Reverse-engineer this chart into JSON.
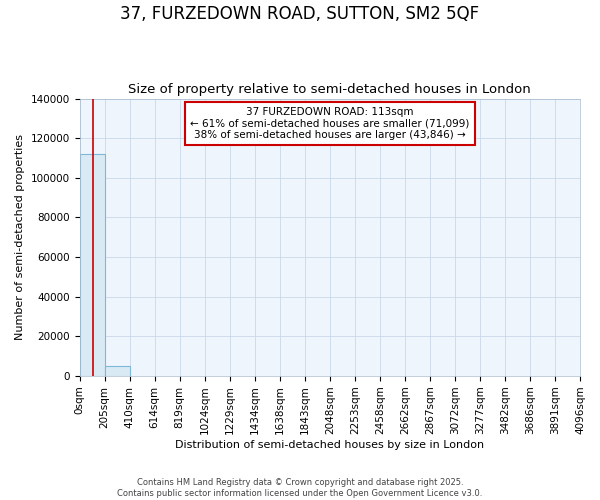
{
  "title": "37, FURZEDOWN ROAD, SUTTON, SM2 5QF",
  "subtitle": "Size of property relative to semi-detached houses in London",
  "xlabel": "Distribution of semi-detached houses by size in London",
  "ylabel": "Number of semi-detached properties",
  "property_size": 113,
  "annotation_line1": "37 FURZEDOWN ROAD: 113sqm",
  "annotation_line2": "← 61% of semi-detached houses are smaller (71,099)",
  "annotation_line3": "38% of semi-detached houses are larger (43,846) →",
  "bin_edges": [
    0,
    205,
    410,
    614,
    819,
    1024,
    1229,
    1434,
    1638,
    1843,
    2048,
    2253,
    2458,
    2662,
    2867,
    3072,
    3277,
    3482,
    3686,
    3891,
    4096
  ],
  "bar_heights": [
    112000,
    5000,
    0,
    0,
    0,
    0,
    0,
    0,
    0,
    0,
    0,
    0,
    0,
    0,
    0,
    0,
    0,
    0,
    0,
    0
  ],
  "bar_color": "#DAEAF5",
  "bar_edge_color": "#7EB8D9",
  "red_line_color": "#CC0000",
  "annotation_box_color": "#CC0000",
  "background_color": "#FFFFFF",
  "plot_bg_color": "#EEF5FC",
  "grid_color": "#C8D8E8",
  "ylim": [
    0,
    140000
  ],
  "yticks": [
    0,
    20000,
    40000,
    60000,
    80000,
    100000,
    120000,
    140000
  ],
  "footer": "Contains HM Land Registry data © Crown copyright and database right 2025.\nContains public sector information licensed under the Open Government Licence v3.0.",
  "tick_label_fontsize": 7.5,
  "axis_label_fontsize": 8,
  "title_fontsize": 12,
  "subtitle_fontsize": 9.5
}
